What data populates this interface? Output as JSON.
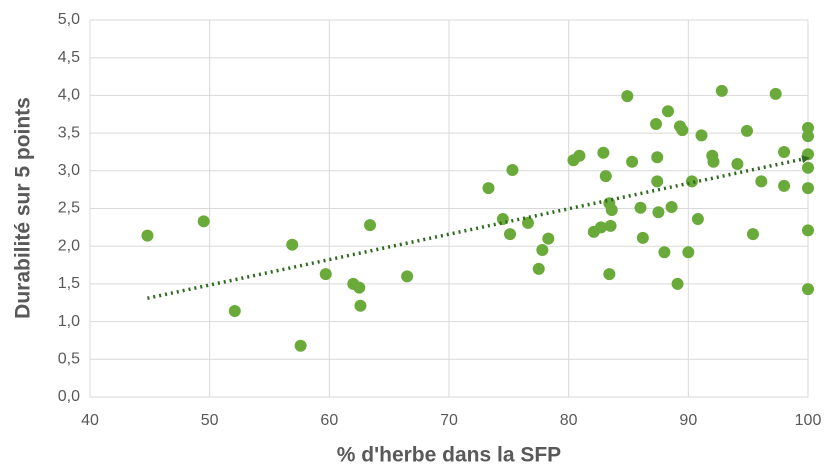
{
  "chart_data": {
    "type": "scatter",
    "xlabel": "% d'herbe dans la SFP",
    "ylabel": "Durabilité sur 5 points",
    "color": "#6aaa3a",
    "x": [
      44.8,
      49.5,
      52.1,
      56.9,
      57.6,
      59.7,
      62.0,
      62.5,
      62.6,
      63.4,
      66.5,
      73.3,
      74.5,
      75.1,
      75.3,
      76.6,
      77.5,
      77.8,
      78.3,
      80.4,
      80.9,
      82.1,
      82.7,
      82.9,
      83.1,
      83.4,
      83.5,
      83.6,
      83.4,
      84.9,
      85.3,
      86.0,
      86.2,
      87.3,
      87.4,
      87.4,
      87.5,
      88.0,
      88.3,
      88.6,
      89.1,
      89.3,
      89.5,
      90.0,
      90.3,
      90.8,
      91.1,
      92.0,
      92.1,
      92.8,
      94.1,
      94.9,
      95.4,
      96.1,
      97.3,
      98.0,
      98.0,
      100,
      100,
      100,
      100,
      100,
      100,
      100
    ],
    "values": [
      2.14,
      2.33,
      1.14,
      2.02,
      0.68,
      1.63,
      1.5,
      1.45,
      1.21,
      2.28,
      1.6,
      2.77,
      2.36,
      2.16,
      3.01,
      2.31,
      1.7,
      1.95,
      2.1,
      3.14,
      3.2,
      2.19,
      2.25,
      3.24,
      2.93,
      2.57,
      2.27,
      2.48,
      1.63,
      3.99,
      3.12,
      2.51,
      2.11,
      3.62,
      3.18,
      2.86,
      2.45,
      1.92,
      3.79,
      2.52,
      1.5,
      3.59,
      3.54,
      1.92,
      2.86,
      2.36,
      3.47,
      3.2,
      3.12,
      4.06,
      3.09,
      3.53,
      2.16,
      2.86,
      4.02,
      3.25,
      2.8,
      3.57,
      3.46,
      3.22,
      3.04,
      2.77,
      2.21,
      1.43
    ],
    "trendline": {
      "color": "#2e6b1e",
      "x": [
        44.8,
        100
      ],
      "values": [
        1.31,
        3.17
      ]
    },
    "xlim": [
      40,
      100
    ],
    "xticks": [
      40,
      50,
      60,
      70,
      80,
      90,
      100
    ],
    "ylim": [
      0,
      5
    ],
    "yticks": [
      {
        "value": 0,
        "label": "0,0"
      },
      {
        "value": 0.5,
        "label": "0,5"
      },
      {
        "value": 1,
        "label": "1,0"
      },
      {
        "value": 1.5,
        "label": "1,5"
      },
      {
        "value": 2,
        "label": "2,0"
      },
      {
        "value": 2.5,
        "label": "2,5"
      },
      {
        "value": 3,
        "label": "3,0"
      },
      {
        "value": 3.5,
        "label": "3,5"
      },
      {
        "value": 4,
        "label": "4,0"
      },
      {
        "value": 4.5,
        "label": "4,5"
      },
      {
        "value": 5,
        "label": "5,0"
      }
    ],
    "grid": true
  }
}
